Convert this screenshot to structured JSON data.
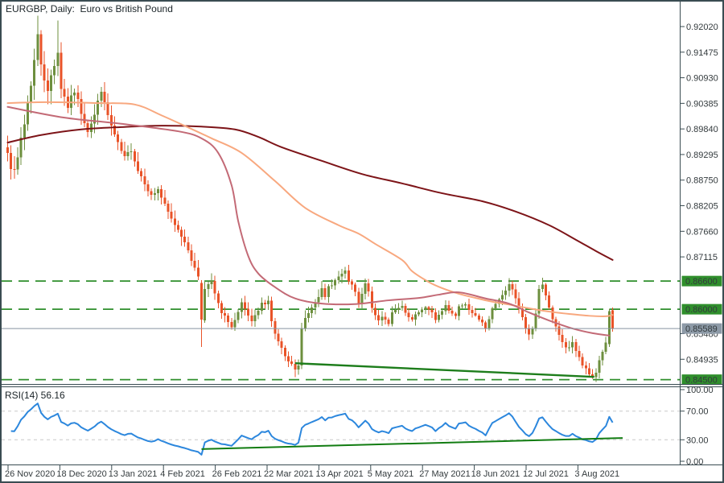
{
  "window": {
    "title": "EURGBP, Daily:  Euro vs British Pound"
  },
  "colors": {
    "background": "#ffffff",
    "frame": "#3a4c52",
    "axis_text": "#333a3d",
    "bull_candle": "#6d8f3e",
    "bear_candle": "#e95328",
    "level_green": "#2f8f2c",
    "badge_green": "#2f8f2c",
    "badge_text": "#ffffff",
    "current_price_line": "#8795a1",
    "current_price_badge": "#8d9aa7",
    "rsi_guide": "#c9c9c9"
  },
  "chart_data": {
    "type": "candlestick",
    "symbol": "EURGBP",
    "timeframe": "Daily",
    "description": "Euro vs British Pound",
    "price_axis": {
      "tick_labels": [
        "0.92020",
        "0.91475",
        "0.90930",
        "0.90385",
        "0.89840",
        "0.89295",
        "0.88750",
        "0.88205",
        "0.87660",
        "0.87115",
        "0.85480",
        "0.84935"
      ],
      "partially_hidden_tick": "0.85480",
      "top_tick_price": 0.9202,
      "tick_step": 0.00545
    },
    "time_axis": {
      "labels": [
        "26 Nov 2020",
        "18 Dec 2020",
        "13 Jan 2021",
        "4 Feb 2021",
        "26 Feb 2021",
        "22 Mar 2021",
        "13 Apr 2021",
        "5 May 2021",
        "27 May 2021",
        "18 Jun 2021",
        "12 Jul 2021",
        "3 Aug 2021"
      ]
    },
    "levels": [
      {
        "label": "0.86600",
        "price": 0.866
      },
      {
        "label": "0.86000",
        "price": 0.86
      },
      {
        "label": "0.84500",
        "price": 0.845
      }
    ],
    "current_price": {
      "label": "0.85589",
      "price": 0.85589
    },
    "trendline": {
      "color": "#1d7d1b",
      "from": [
        86,
        0.8485
      ],
      "to": [
        175.5,
        0.8456
      ]
    },
    "moving_averages": [
      {
        "id": "ma-slow",
        "color": "#7d1418",
        "points": [
          [
            0,
            0.8955
          ],
          [
            10,
            0.8971
          ],
          [
            22,
            0.8983
          ],
          [
            34,
            0.8988
          ],
          [
            46,
            0.8991
          ],
          [
            58,
            0.8989
          ],
          [
            68,
            0.8983
          ],
          [
            75,
            0.8967
          ],
          [
            82,
            0.8945
          ],
          [
            94,
            0.8916
          ],
          [
            106,
            0.8888
          ],
          [
            118,
            0.8868
          ],
          [
            130,
            0.8847
          ],
          [
            142,
            0.883
          ],
          [
            152,
            0.8808
          ],
          [
            162,
            0.8779
          ],
          [
            170,
            0.8748
          ],
          [
            176,
            0.8724
          ],
          [
            181,
            0.8705
          ]
        ]
      },
      {
        "id": "ma-medium",
        "color": "#f8a87f",
        "points": [
          [
            0,
            0.9039
          ],
          [
            12,
            0.9041
          ],
          [
            27,
            0.9039
          ],
          [
            38,
            0.9036
          ],
          [
            46,
            0.9013
          ],
          [
            55,
            0.8984
          ],
          [
            61,
            0.8964
          ],
          [
            70,
            0.8933
          ],
          [
            80,
            0.8873
          ],
          [
            89,
            0.8816
          ],
          [
            99,
            0.8779
          ],
          [
            105,
            0.8761
          ],
          [
            110,
            0.8739
          ],
          [
            118,
            0.8705
          ],
          [
            121,
            0.8681
          ],
          [
            126,
            0.8658
          ],
          [
            130,
            0.8645
          ],
          [
            135,
            0.8633
          ],
          [
            140,
            0.8624
          ],
          [
            145,
            0.8616
          ],
          [
            150,
            0.861
          ],
          [
            156,
            0.8602
          ],
          [
            162,
            0.8595
          ],
          [
            168,
            0.859
          ],
          [
            174,
            0.8586
          ],
          [
            179,
            0.8585
          ],
          [
            181,
            0.8588
          ]
        ]
      },
      {
        "id": "ma-fast",
        "color": "#c36a76",
        "points": [
          [
            0,
            0.9031
          ],
          [
            17,
            0.9008
          ],
          [
            34,
            0.8995
          ],
          [
            51,
            0.8979
          ],
          [
            58,
            0.8964
          ],
          [
            63,
            0.8933
          ],
          [
            67,
            0.8864
          ],
          [
            69,
            0.8787
          ],
          [
            72,
            0.8713
          ],
          [
            75,
            0.8676
          ],
          [
            80,
            0.8647
          ],
          [
            86,
            0.8623
          ],
          [
            94,
            0.8612
          ],
          [
            104,
            0.8611
          ],
          [
            114,
            0.8619
          ],
          [
            123,
            0.8624
          ],
          [
            129,
            0.8631
          ],
          [
            135,
            0.8636
          ],
          [
            143,
            0.8623
          ],
          [
            150,
            0.8612
          ],
          [
            156,
            0.8593
          ],
          [
            162,
            0.8576
          ],
          [
            169,
            0.8559
          ],
          [
            175,
            0.8549
          ],
          [
            180,
            0.8544
          ]
        ]
      }
    ],
    "candles": {
      "count": 182,
      "seed": 7,
      "close_anchors": [
        [
          0,
          0.894
        ],
        [
          1,
          0.8905
        ],
        [
          2,
          0.889
        ],
        [
          3,
          0.892
        ],
        [
          4,
          0.8965
        ],
        [
          5,
          0.8995
        ],
        [
          6,
          0.904
        ],
        [
          7,
          0.908
        ],
        [
          8,
          0.913
        ],
        [
          9,
          0.9182
        ],
        [
          10,
          0.9125
        ],
        [
          12,
          0.9061
        ],
        [
          13,
          0.9098
        ],
        [
          15,
          0.9148
        ],
        [
          16,
          0.9072
        ],
        [
          18,
          0.9032
        ],
        [
          20,
          0.9065
        ],
        [
          22,
          0.902
        ],
        [
          24,
          0.8982
        ],
        [
          26,
          0.9014
        ],
        [
          28,
          0.9068
        ],
        [
          29,
          0.9036
        ],
        [
          31,
          0.899
        ],
        [
          33,
          0.8951
        ],
        [
          35,
          0.8921
        ],
        [
          37,
          0.8941
        ],
        [
          39,
          0.8896
        ],
        [
          41,
          0.8871
        ],
        [
          43,
          0.8841
        ],
        [
          45,
          0.8856
        ],
        [
          47,
          0.882
        ],
        [
          49,
          0.8791
        ],
        [
          51,
          0.8771
        ],
        [
          53,
          0.8746
        ],
        [
          54,
          0.8721
        ],
        [
          55,
          0.8705
        ],
        [
          56,
          0.8692
        ],
        [
          57,
          0.8668
        ],
        [
          58,
          0.8578
        ],
        [
          59,
          0.8648
        ],
        [
          61,
          0.8656
        ],
        [
          63,
          0.861
        ],
        [
          64,
          0.859
        ],
        [
          66,
          0.8576
        ],
        [
          67,
          0.8561
        ],
        [
          69,
          0.8591
        ],
        [
          70,
          0.8611
        ],
        [
          72,
          0.8586
        ],
        [
          73,
          0.8571
        ],
        [
          75,
          0.8596
        ],
        [
          76,
          0.8611
        ],
        [
          78,
          0.8618
        ],
        [
          79,
          0.8576
        ],
        [
          80,
          0.8546
        ],
        [
          82,
          0.8516
        ],
        [
          83,
          0.8496
        ],
        [
          85,
          0.8481
        ],
        [
          86,
          0.8472
        ],
        [
          87,
          0.8479
        ],
        [
          88,
          0.8556
        ],
        [
          89,
          0.8581
        ],
        [
          91,
          0.8606
        ],
        [
          92,
          0.8619
        ],
        [
          94,
          0.8641
        ],
        [
          95,
          0.8623
        ],
        [
          96,
          0.8648
        ],
        [
          98,
          0.8661
        ],
        [
          99,
          0.8669
        ],
        [
          101,
          0.8679
        ],
        [
          102,
          0.8661
        ],
        [
          104,
          0.8636
        ],
        [
          105,
          0.8611
        ],
        [
          107,
          0.8653
        ],
        [
          108,
          0.8641
        ],
        [
          109,
          0.8599
        ],
        [
          111,
          0.8576
        ],
        [
          112,
          0.8586
        ],
        [
          114,
          0.8571
        ],
        [
          115,
          0.8591
        ],
        [
          117,
          0.8601
        ],
        [
          118,
          0.8606
        ],
        [
          119,
          0.8589
        ],
        [
          121,
          0.8576
        ],
        [
          122,
          0.8586
        ],
        [
          124,
          0.8601
        ],
        [
          125,
          0.8604
        ],
        [
          127,
          0.8591
        ],
        [
          128,
          0.8579
        ],
        [
          130,
          0.8596
        ],
        [
          131,
          0.8609
        ],
        [
          132,
          0.8599
        ],
        [
          134,
          0.8586
        ],
        [
          135,
          0.8606
        ],
        [
          137,
          0.8614
        ],
        [
          138,
          0.8601
        ],
        [
          140,
          0.8589
        ],
        [
          141,
          0.8576
        ],
        [
          143,
          0.8561
        ],
        [
          144,
          0.8581
        ],
        [
          145,
          0.8603
        ],
        [
          147,
          0.8619
        ],
        [
          148,
          0.8631
        ],
        [
          150,
          0.8651
        ],
        [
          151,
          0.8641
        ],
        [
          152,
          0.8621
        ],
        [
          153,
          0.8601
        ],
        [
          154,
          0.8581
        ],
        [
          155,
          0.8561
        ],
        [
          156,
          0.8546
        ],
        [
          157,
          0.8561
        ],
        [
          158,
          0.8591
        ],
        [
          159,
          0.8641
        ],
        [
          160,
          0.8656
        ],
        [
          161,
          0.8631
        ],
        [
          162,
          0.8601
        ],
        [
          163,
          0.8576
        ],
        [
          164,
          0.8561
        ],
        [
          165,
          0.8546
        ],
        [
          166,
          0.8531
        ],
        [
          167,
          0.8516
        ],
        [
          168,
          0.8521
        ],
        [
          169,
          0.8531
        ],
        [
          170,
          0.8511
        ],
        [
          171,
          0.8496
        ],
        [
          172,
          0.8481
        ],
        [
          173,
          0.8471
        ],
        [
          174,
          0.8461
        ],
        [
          175,
          0.8456
        ],
        [
          176,
          0.8466
        ],
        [
          177,
          0.8491
        ],
        [
          178,
          0.8511
        ],
        [
          179,
          0.8526
        ],
        [
          180,
          0.8596
        ],
        [
          181,
          0.8559
        ]
      ],
      "volatility_anchors": [
        [
          0,
          1.7
        ],
        [
          10,
          1.8
        ],
        [
          20,
          1.5
        ],
        [
          30,
          1.3
        ],
        [
          45,
          1.1
        ],
        [
          56,
          1.2
        ],
        [
          62,
          1.0
        ],
        [
          80,
          0.9
        ],
        [
          88,
          1.0
        ],
        [
          100,
          0.9
        ],
        [
          112,
          0.8
        ],
        [
          130,
          0.7
        ],
        [
          142,
          0.7
        ],
        [
          150,
          0.8
        ],
        [
          160,
          0.9
        ],
        [
          170,
          0.8
        ],
        [
          181,
          0.8
        ]
      ],
      "overrides": [
        {
          "bar": 9,
          "high": 0.9225
        },
        {
          "bar": 15,
          "high": 0.9215
        },
        {
          "bar": 58,
          "open": 0.8656,
          "high": 0.8662,
          "low": 0.852,
          "close": 0.8578
        },
        {
          "bar": 86,
          "low": 0.8455
        },
        {
          "bar": 175,
          "low": 0.8452
        },
        {
          "bar": 180,
          "open": 0.8526,
          "high": 0.8601,
          "low": 0.852,
          "close": 0.8596
        },
        {
          "bar": 181,
          "open": 0.8598,
          "high": 0.8604,
          "low": 0.8552,
          "close": 0.8559
        }
      ]
    },
    "rsi": {
      "label": "RSI(14) 56.16",
      "period": 14,
      "value": 56.16,
      "color": "#2c87dd",
      "tick_labels": [
        "100.00",
        "70.00",
        "30.00",
        "0.00"
      ],
      "tick_values": [
        100,
        70,
        30,
        0
      ],
      "guide_levels": [
        70,
        30
      ],
      "trendline": {
        "color": "#117c11",
        "from": [
          58,
          17
        ],
        "to": [
          184,
          32.5
        ]
      }
    }
  }
}
